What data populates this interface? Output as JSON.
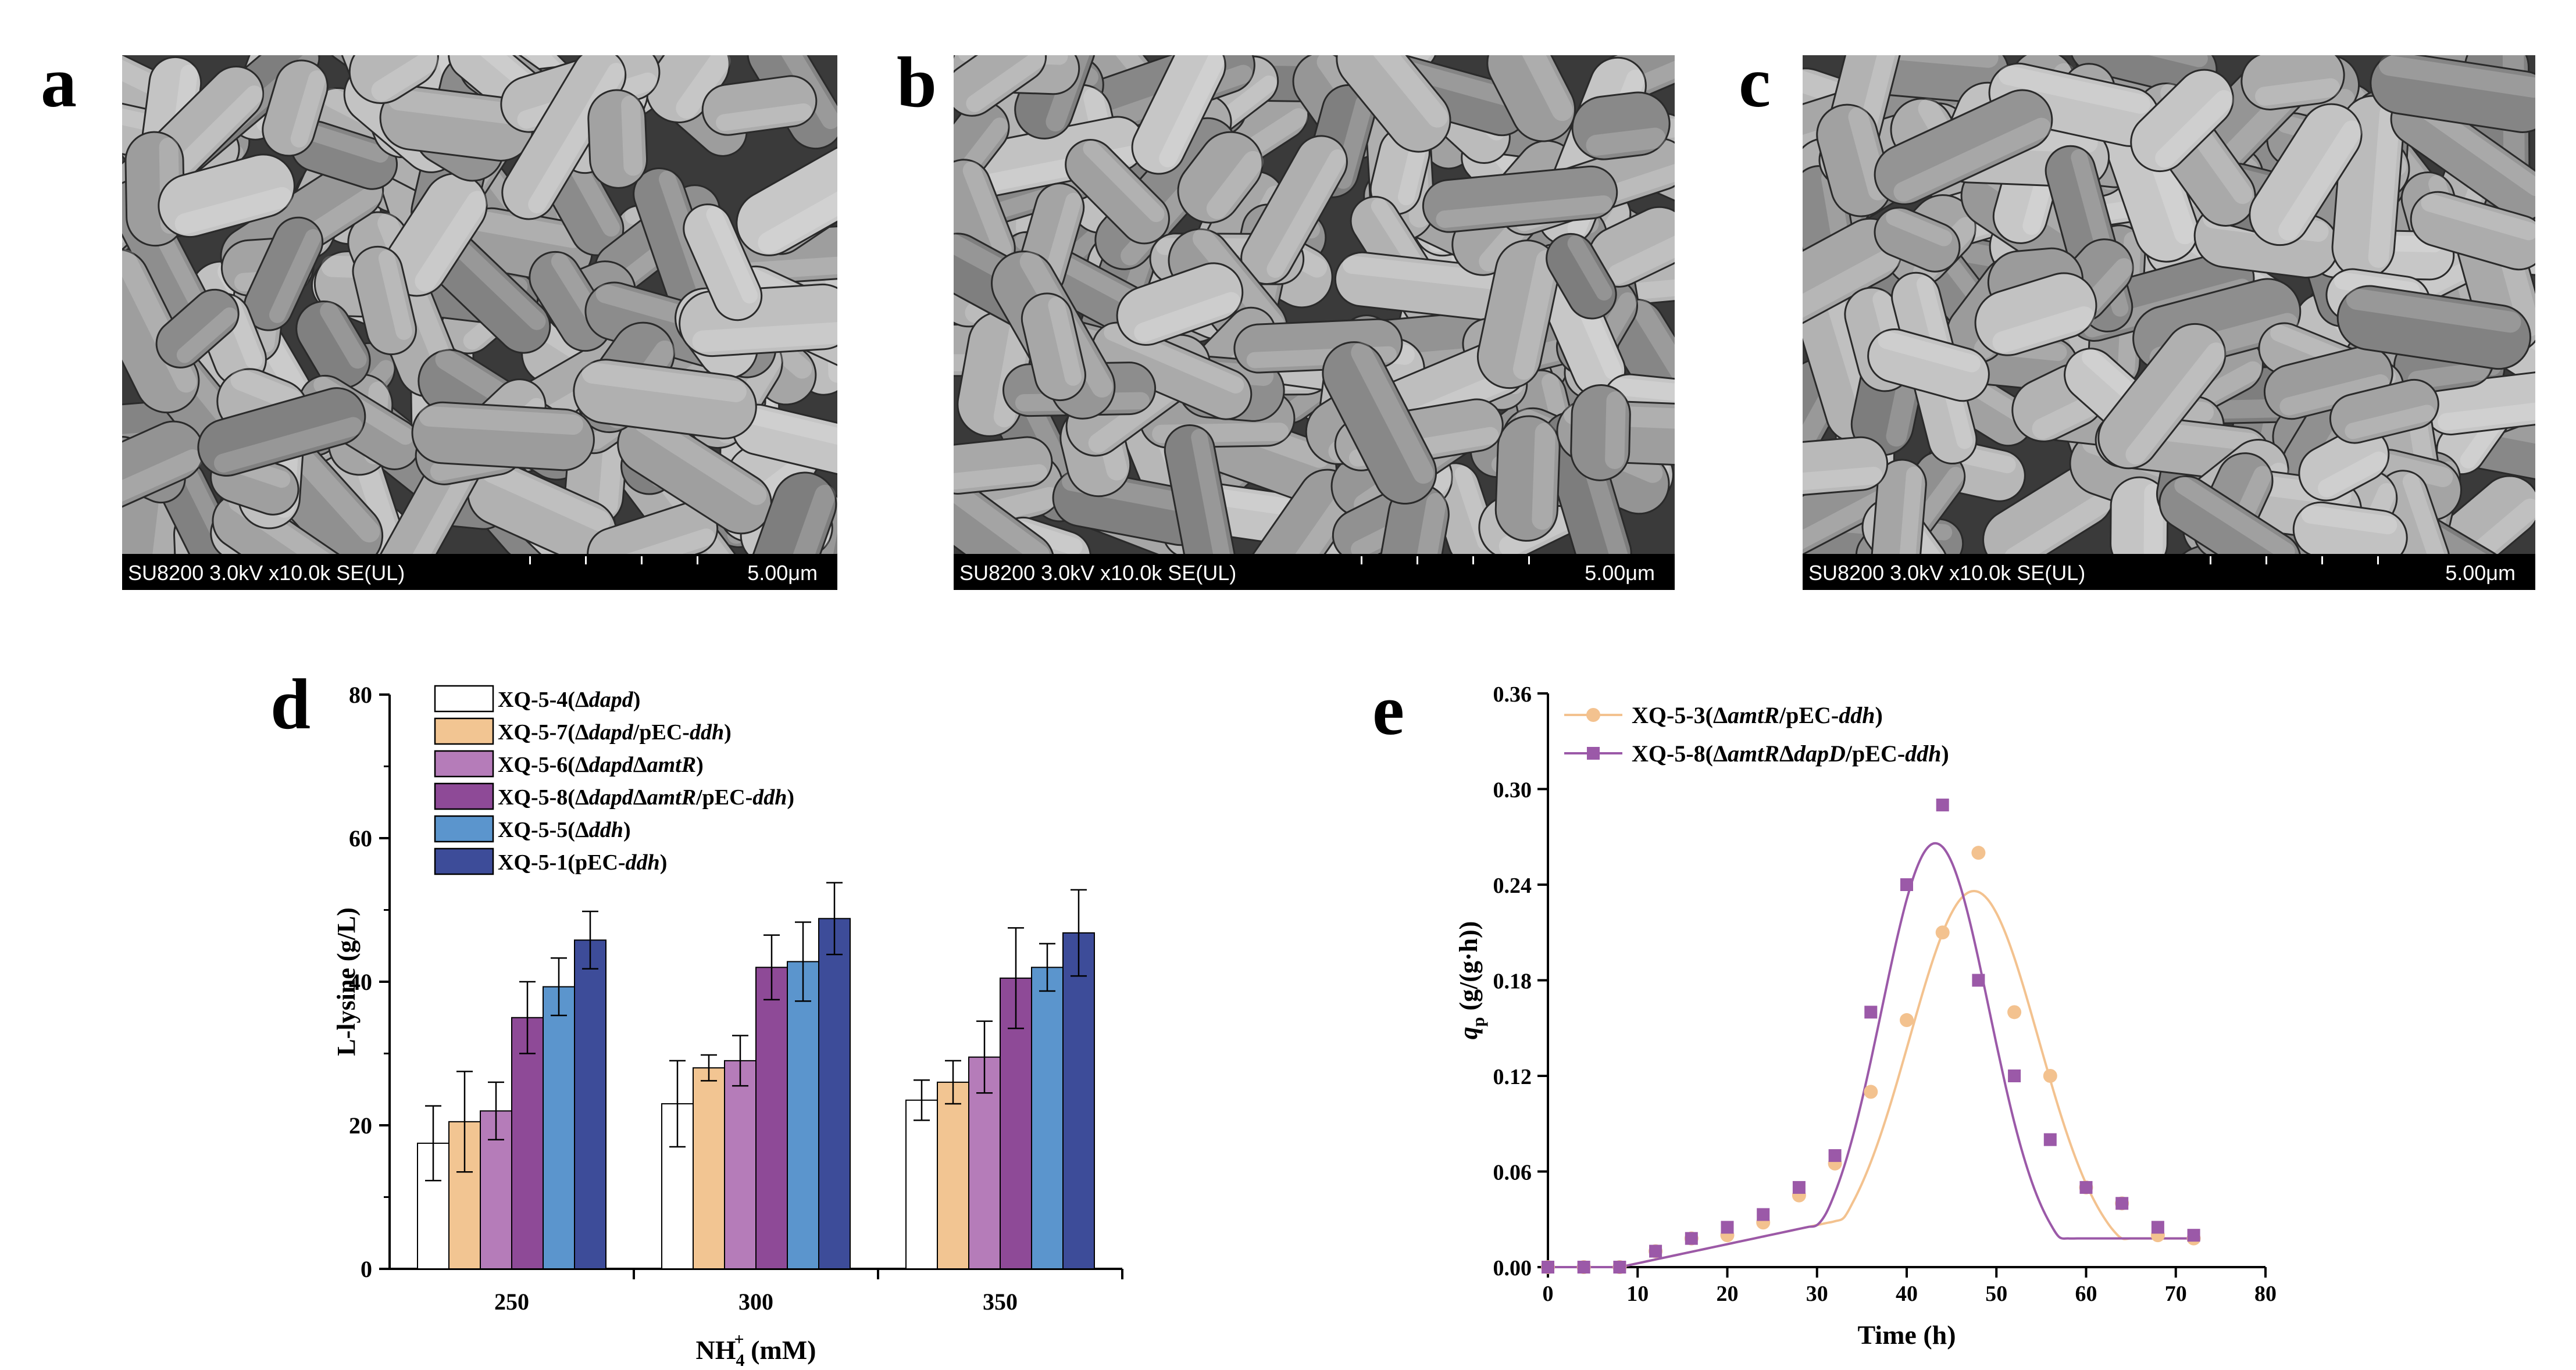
{
  "panels": {
    "a": {
      "letter": "a",
      "info": "SU8200 3.0kV x10.0k SE(UL)",
      "scale": "5.00μm"
    },
    "b": {
      "letter": "b",
      "info": "SU8200 3.0kV x10.0k SE(UL)",
      "scale": "5.00μm"
    },
    "c": {
      "letter": "c",
      "info": "SU8200 3.0kV x10.0k SE(UL)",
      "scale": "5.00μm"
    },
    "d": {
      "letter": "d"
    },
    "e": {
      "letter": "e"
    }
  },
  "colors": {
    "s1": "#ffffff",
    "s2": "#f2c592",
    "s3": "#b57cb9",
    "s4": "#8e4a97",
    "s5": "#5b95cd",
    "s6": "#3d4c99",
    "e_a": "#f3c28f",
    "e_b": "#9b59a8"
  },
  "chart_data": [
    {
      "type": "bar",
      "panel": "d",
      "title": "",
      "xlabel": "NH",
      "xlabel_sup": "4",
      "xlabel_sup2": "+",
      "xlabel_unit": " (mM)",
      "ylabel": "L-lysine (g/L)",
      "ylim": [
        0,
        80
      ],
      "yticks": [
        "0",
        "20",
        "40",
        "60",
        "80"
      ],
      "categories": [
        "250",
        "300",
        "350"
      ],
      "legend_position": "top-left",
      "series": [
        {
          "name": "XQ-5-4(Δdapd)",
          "label_parts": [
            [
              "XQ-5-4(Δ",
              false
            ],
            [
              "dapd",
              true
            ],
            [
              ")",
              false
            ]
          ],
          "values": [
            17.5,
            23.0,
            23.5
          ],
          "errors": [
            5.2,
            6.0,
            2.8
          ]
        },
        {
          "name": "XQ-5-7(Δdapd/pEC-ddh)",
          "label_parts": [
            [
              "XQ-5-7(Δ",
              false
            ],
            [
              "dapd",
              true
            ],
            [
              "/pEC-",
              false
            ],
            [
              "ddh",
              true
            ],
            [
              ")",
              false
            ]
          ],
          "values": [
            20.5,
            28.0,
            26.0
          ],
          "errors": [
            7.0,
            1.8,
            3.0
          ]
        },
        {
          "name": "XQ-5-6(ΔdapdΔamtR)",
          "label_parts": [
            [
              "XQ-5-6(Δ",
              false
            ],
            [
              "dapd",
              true
            ],
            [
              "Δ",
              false
            ],
            [
              "amtR",
              true
            ],
            [
              ")",
              false
            ]
          ],
          "values": [
            22.0,
            29.0,
            29.5
          ],
          "errors": [
            4.0,
            3.5,
            5.0
          ]
        },
        {
          "name": "XQ-5-8(ΔdapdΔamtR/pEC-ddh)",
          "label_parts": [
            [
              "XQ-5-8(Δ",
              false
            ],
            [
              "dapd",
              true
            ],
            [
              "Δ",
              false
            ],
            [
              "amtR",
              true
            ],
            [
              "/pEC-",
              false
            ],
            [
              "ddh",
              true
            ],
            [
              ")",
              false
            ]
          ],
          "values": [
            35.0,
            42.0,
            40.5
          ],
          "errors": [
            5.0,
            4.5,
            7.0
          ]
        },
        {
          "name": "XQ-5-5(Δddh)",
          "label_parts": [
            [
              "XQ-5-5(Δ",
              false
            ],
            [
              "ddh",
              true
            ],
            [
              ")",
              false
            ]
          ],
          "values": [
            39.3,
            42.8,
            42.0
          ],
          "errors": [
            4.0,
            5.5,
            3.3
          ]
        },
        {
          "name": "XQ-5-1(pEC-ddh)",
          "label_parts": [
            [
              "XQ-5-1(pEC-",
              false
            ],
            [
              "ddh",
              true
            ],
            [
              ")",
              false
            ]
          ],
          "values": [
            45.8,
            48.8,
            46.8
          ],
          "errors": [
            4.0,
            5.0,
            6.0
          ]
        }
      ]
    },
    {
      "type": "scatter",
      "panel": "e",
      "title": "",
      "xlabel": "Time (h)",
      "ylabel": "q",
      "ylabel_sub": "p",
      "ylabel_unit": " (g/(g·h))",
      "xlim": [
        0,
        80
      ],
      "ylim": [
        0,
        0.36
      ],
      "xticks": [
        "0",
        "10",
        "20",
        "30",
        "40",
        "50",
        "60",
        "70",
        "80"
      ],
      "yticks": [
        "0.00",
        "0.06",
        "0.12",
        "0.18",
        "0.24",
        "0.30",
        "0.36"
      ],
      "legend_position": "top-left",
      "series": [
        {
          "name": "XQ-5-3(ΔamtR/pEC-ddh)",
          "marker": "circle",
          "label_parts": [
            [
              "XQ-5-3(Δ",
              false
            ],
            [
              "amtR",
              true
            ],
            [
              "/pEC-",
              false
            ],
            [
              "ddh",
              true
            ],
            [
              ")",
              false
            ]
          ],
          "x": [
            0,
            4,
            8,
            12,
            16,
            20,
            24,
            28,
            32,
            36,
            40,
            44,
            48,
            52,
            56,
            60,
            64,
            68,
            72
          ],
          "y": [
            0.0,
            0.0,
            0.0,
            0.01,
            0.018,
            0.02,
            0.028,
            0.045,
            0.065,
            0.11,
            0.155,
            0.21,
            0.26,
            0.16,
            0.12,
            0.05,
            0.04,
            0.02,
            0.018
          ]
        },
        {
          "name": "XQ-5-8(ΔamtRΔdapD/pEC-ddh)",
          "marker": "square",
          "label_parts": [
            [
              "XQ-5-8(Δ",
              false
            ],
            [
              "amtR",
              true
            ],
            [
              "Δ",
              false
            ],
            [
              "dapD",
              true
            ],
            [
              "/pEC-",
              false
            ],
            [
              "ddh",
              true
            ],
            [
              ")",
              false
            ]
          ],
          "x": [
            0,
            4,
            8,
            12,
            16,
            20,
            24,
            28,
            32,
            36,
            40,
            44,
            48,
            52,
            56,
            60,
            64,
            68,
            72
          ],
          "y": [
            0.0,
            0.0,
            0.0,
            0.01,
            0.018,
            0.025,
            0.033,
            0.05,
            0.07,
            0.16,
            0.24,
            0.29,
            0.18,
            0.12,
            0.08,
            0.05,
            0.04,
            0.025,
            0.02
          ]
        }
      ]
    }
  ]
}
